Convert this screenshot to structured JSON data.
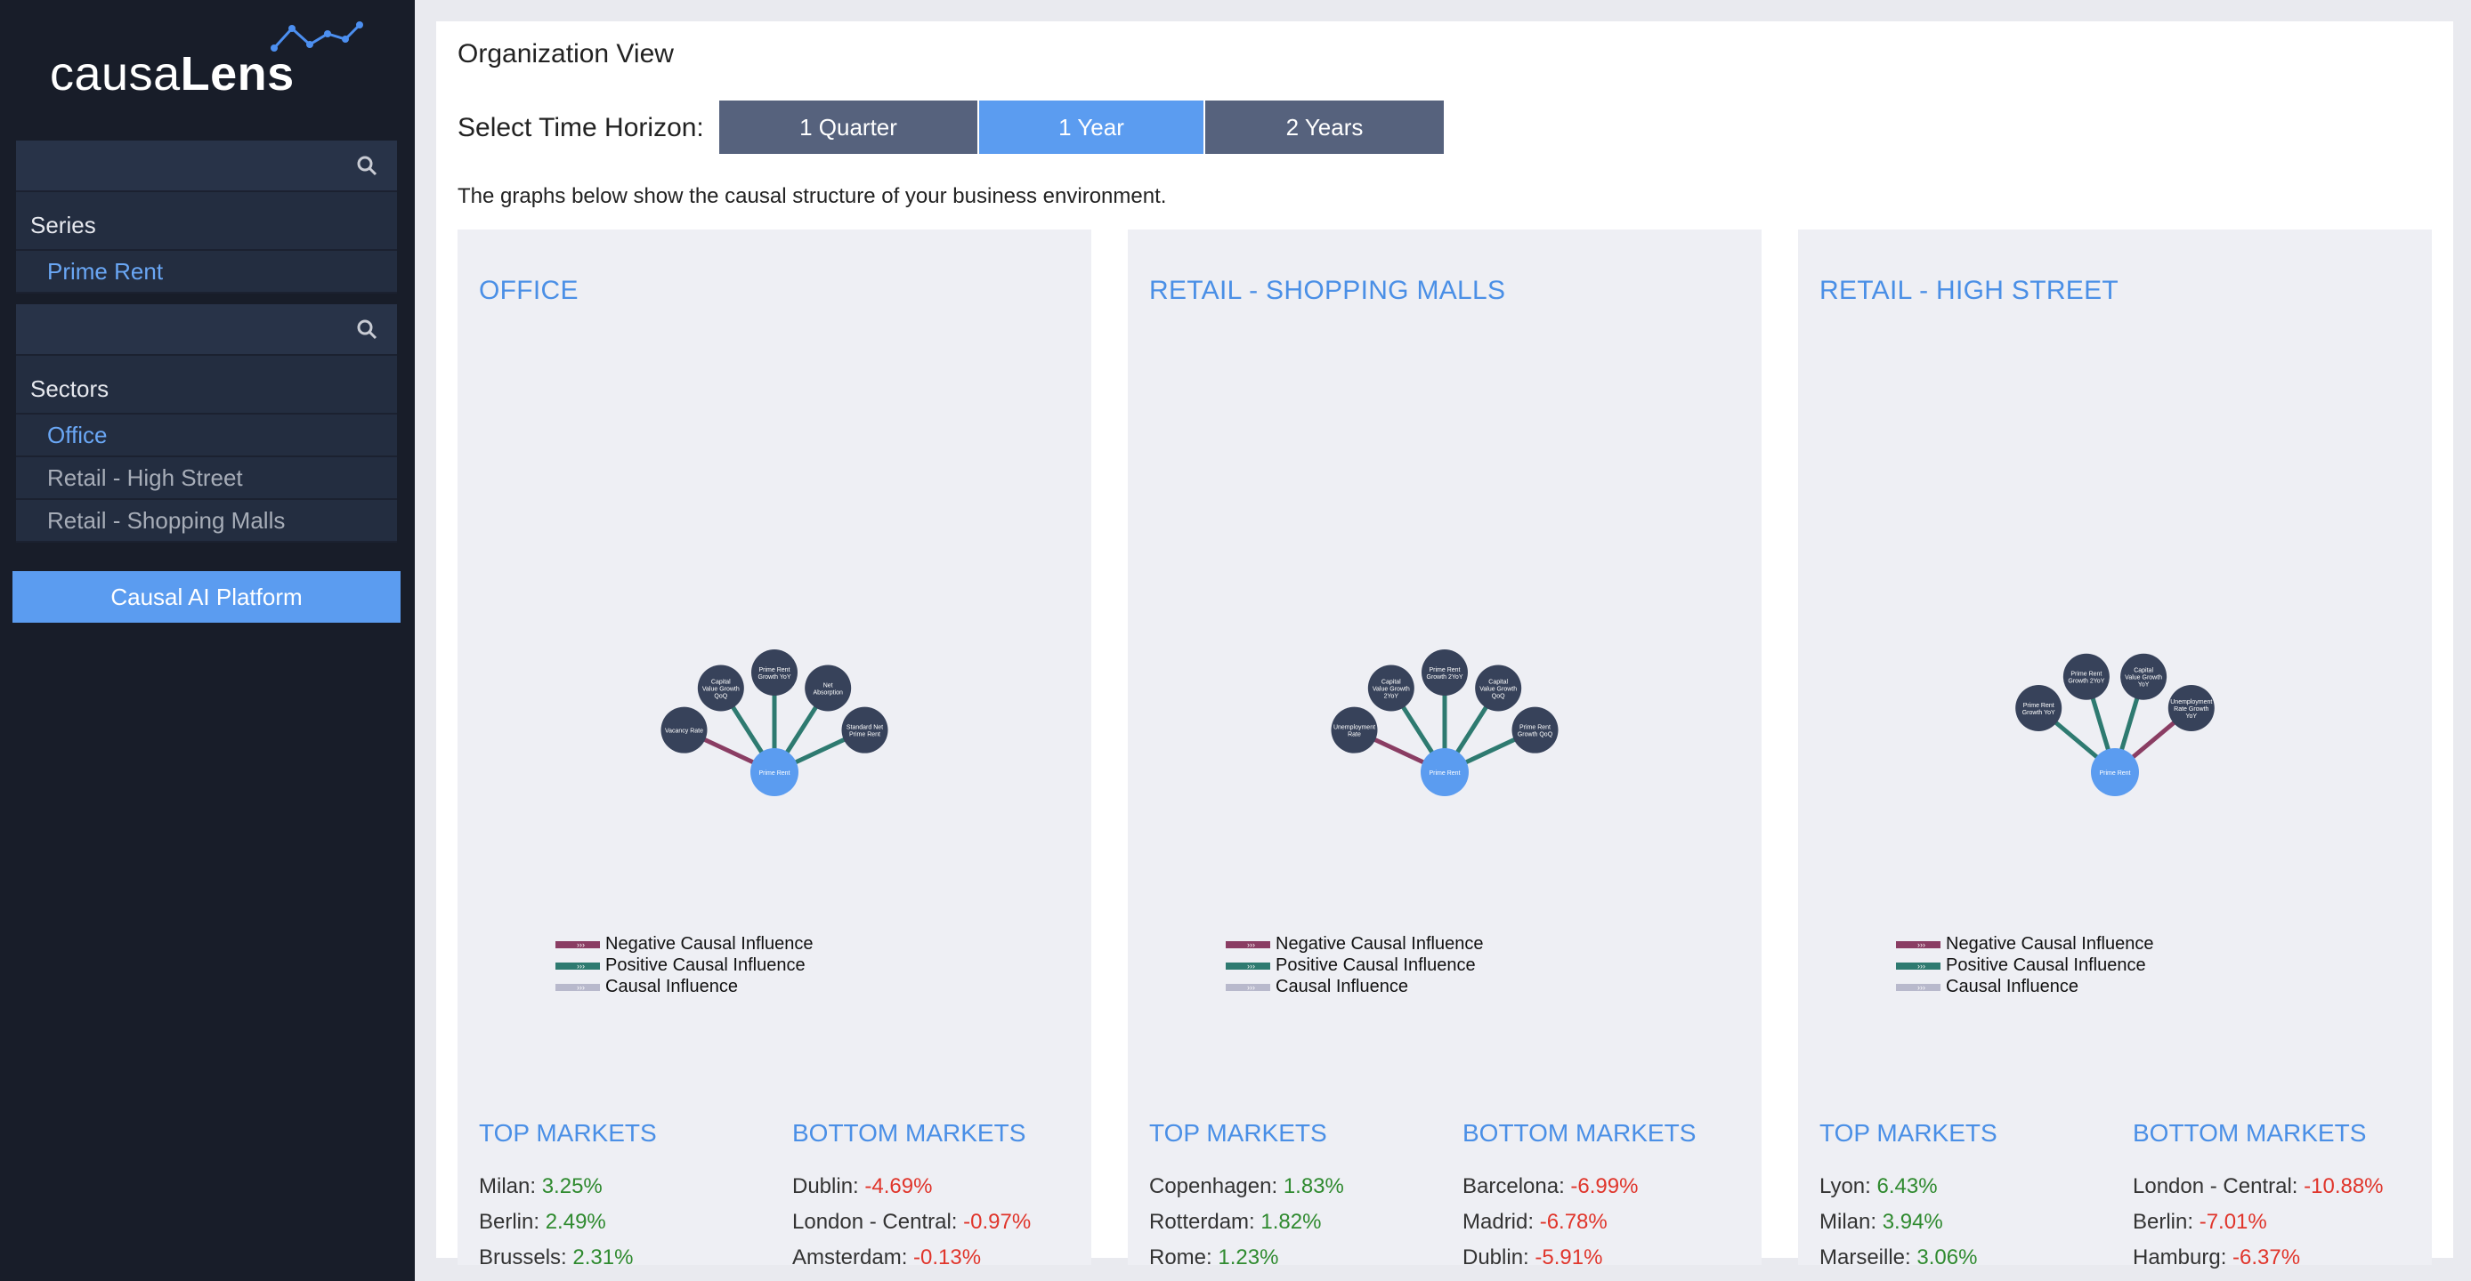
{
  "brand": {
    "light": "causa",
    "bold": "Lens"
  },
  "sidebar": {
    "series_search_placeholder": "",
    "series_heading": "Series",
    "series_items": [
      {
        "label": "Prime Rent",
        "active": true
      }
    ],
    "sectors_search_placeholder": "",
    "sectors_heading": "Sectors",
    "sectors_items": [
      {
        "label": "Office",
        "active": true
      },
      {
        "label": "Retail - High Street",
        "active": false
      },
      {
        "label": "Retail - Shopping Malls",
        "active": false
      }
    ],
    "platform_button": "Causal AI Platform"
  },
  "main": {
    "title": "Organization View",
    "time_horizon_label": "Select Time Horizon:",
    "time_options": [
      {
        "label": "1 Quarter",
        "active": false
      },
      {
        "label": "1 Year",
        "active": true
      },
      {
        "label": "2 Years",
        "active": false
      }
    ],
    "description": "The graphs below show the causal structure of your business environment."
  },
  "legend": {
    "negative": "Negative Causal Influence",
    "positive": "Positive Causal Influence",
    "neutral": "Causal Influence",
    "colors": {
      "negative": "#8a3d63",
      "positive": "#2e7a70",
      "neutral": "#b8b9cc"
    }
  },
  "cards": [
    {
      "title": "OFFICE",
      "target": "Prime Rent",
      "drivers": [
        {
          "label": "Vacancy Rate",
          "effect": "negative"
        },
        {
          "label": "Capital Value Growth QoQ",
          "effect": "positive"
        },
        {
          "label": "Prime Rent Growth YoY",
          "effect": "positive"
        },
        {
          "label": "Net Absorption",
          "effect": "positive"
        },
        {
          "label": "Standard Net Prime Rent",
          "effect": "positive"
        }
      ],
      "top_title": "TOP MARKETS",
      "bottom_title": "BOTTOM MARKETS",
      "top_markets": [
        {
          "name": "Milan:",
          "value": "3.25%"
        },
        {
          "name": "Berlin:",
          "value": "2.49%"
        },
        {
          "name": "Brussels:",
          "value": "2.31%"
        }
      ],
      "bottom_markets": [
        {
          "name": "Dublin:",
          "value": "-4.69%"
        },
        {
          "name": "London - Central:",
          "value": "-0.97%"
        },
        {
          "name": "Amsterdam:",
          "value": "-0.13%"
        }
      ]
    },
    {
      "title": "RETAIL - SHOPPING MALLS",
      "target": "Prime Rent",
      "drivers": [
        {
          "label": "Unemployment Rate",
          "effect": "negative"
        },
        {
          "label": "Capital Value Growth 2YoY",
          "effect": "positive"
        },
        {
          "label": "Prime Rent Growth 2YoY",
          "effect": "positive"
        },
        {
          "label": "Capital Value Growth QoQ",
          "effect": "positive"
        },
        {
          "label": "Prime Rent Growth QoQ",
          "effect": "positive"
        }
      ],
      "top_title": "TOP MARKETS",
      "bottom_title": "BOTTOM MARKETS",
      "top_markets": [
        {
          "name": "Copenhagen:",
          "value": "1.83%"
        },
        {
          "name": "Rotterdam:",
          "value": "1.82%"
        },
        {
          "name": "Rome:",
          "value": "1.23%"
        }
      ],
      "bottom_markets": [
        {
          "name": "Barcelona:",
          "value": "-6.99%"
        },
        {
          "name": "Madrid:",
          "value": "-6.78%"
        },
        {
          "name": "Dublin:",
          "value": "-5.91%"
        }
      ]
    },
    {
      "title": "RETAIL - HIGH STREET",
      "target": "Prime Rent",
      "drivers": [
        {
          "label": "Prime Rent Growth YoY",
          "effect": "positive"
        },
        {
          "label": "Prime Rent Growth 2YoY",
          "effect": "positive"
        },
        {
          "label": "Capital Value Growth YoY",
          "effect": "positive"
        },
        {
          "label": "Unemployment Rate Growth YoY",
          "effect": "negative"
        }
      ],
      "top_title": "TOP MARKETS",
      "bottom_title": "BOTTOM MARKETS",
      "top_markets": [
        {
          "name": "Lyon:",
          "value": "6.43%"
        },
        {
          "name": "Milan:",
          "value": "3.94%"
        },
        {
          "name": "Marseille:",
          "value": "3.06%"
        }
      ],
      "bottom_markets": [
        {
          "name": "London - Central:",
          "value": "-10.88%"
        },
        {
          "name": "Berlin:",
          "value": "-7.01%"
        },
        {
          "name": "Hamburg:",
          "value": "-6.37%"
        }
      ]
    }
  ]
}
